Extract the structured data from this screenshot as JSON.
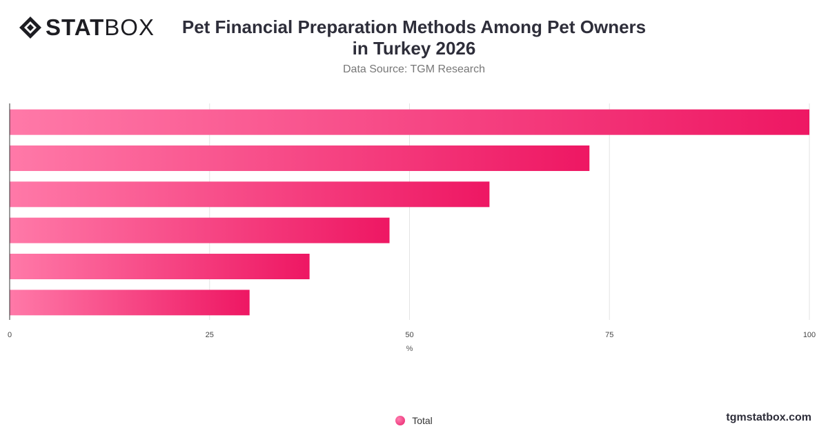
{
  "brand": {
    "logo_bold": "STAT",
    "logo_light": "BOX",
    "watermark": "tgmstatbox.com"
  },
  "colors": {
    "bar_start": "#ff79a8",
    "bar_end": "#ee1763",
    "grid": "#e3e3e3",
    "axis": "#333333"
  },
  "chart_data": {
    "type": "bar",
    "orientation": "horizontal",
    "title_line1": "Pet Financial Preparation Methods Among Pet Owners",
    "title_line2": "in Turkey 2026",
    "subtitle": "Data Source: TGM Research",
    "xlabel": "%",
    "xlim": [
      0,
      100
    ],
    "xticks": [
      "0",
      "25",
      "50",
      "75",
      "100"
    ],
    "grid": true,
    "legend_position": "bottom-center",
    "series": [
      {
        "name": "Total",
        "values": [
          100,
          72.5,
          60,
          47.5,
          37.5,
          30
        ]
      }
    ]
  }
}
